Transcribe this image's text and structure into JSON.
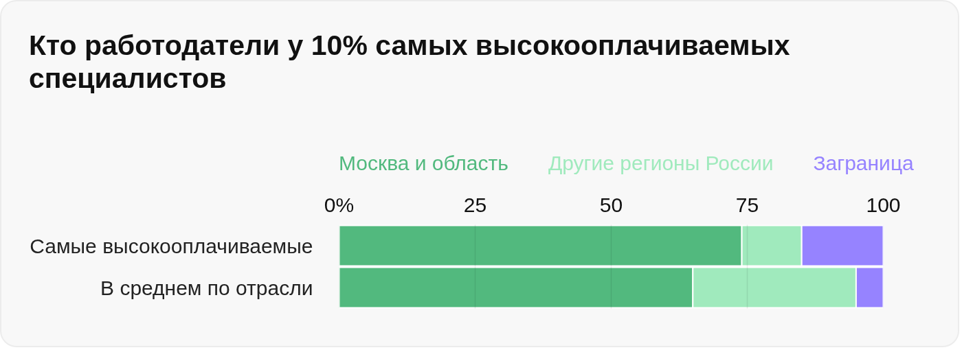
{
  "chart_data": {
    "type": "bar",
    "orientation": "horizontal",
    "stacked": true,
    "title": "Кто работодатели у 10% самых высокооплачиваемых специалистов",
    "categories": [
      "Самые высокооплачиваемые",
      "В среднем по отрасли"
    ],
    "series": [
      {
        "name": "Москва и область",
        "color": "#52b97e",
        "values": [
          74,
          65
        ]
      },
      {
        "name": "Другие регионы России",
        "color": "#a0eabd",
        "values": [
          11,
          30
        ]
      },
      {
        "name": "Заграница",
        "color": "#9683ff",
        "values": [
          15,
          5
        ]
      }
    ],
    "xlim": [
      0,
      100
    ],
    "xticks": [
      {
        "value": 0,
        "label": "0%"
      },
      25,
      50,
      75,
      100
    ],
    "grid": "x",
    "legend": "top"
  }
}
